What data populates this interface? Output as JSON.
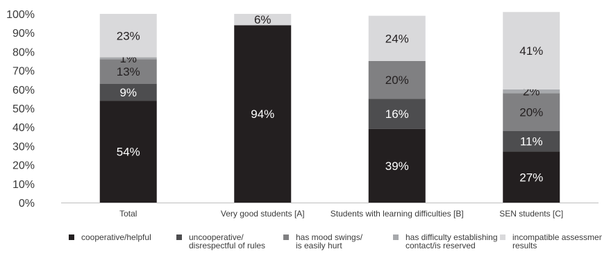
{
  "chart_data": {
    "type": "bar",
    "stacked": true,
    "title": "",
    "xlabel": "",
    "ylabel": "",
    "ylim": [
      0,
      100
    ],
    "y_ticks": [
      "0%",
      "10%",
      "20%",
      "30%",
      "40%",
      "50%",
      "60%",
      "70%",
      "80%",
      "90%",
      "100%"
    ],
    "grid": false,
    "legend_position": "bottom",
    "categories": [
      "Total",
      "Very good students [A]",
      "Students with learning difficulties [B]",
      "SEN students [C]"
    ],
    "series": [
      {
        "name": "cooperative/helpful",
        "color": "#231f20",
        "label_color": "#ffffff",
        "values": [
          54,
          94,
          39,
          27
        ],
        "labels": [
          "54%",
          "94%",
          "39%",
          "27%"
        ]
      },
      {
        "name": "uncooperative/ disrespectful of rules",
        "legend_lines": [
          "uncooperative/",
          "disrespectful of rules"
        ],
        "color": "#4d4d4f",
        "label_color": "#ffffff",
        "values": [
          9,
          0,
          16,
          11
        ],
        "labels": [
          "9%",
          "",
          "16%",
          "11%"
        ]
      },
      {
        "name": "has mood swings/ is easily hurt",
        "legend_lines": [
          "has mood swings/",
          "is easily hurt"
        ],
        "color": "#808082",
        "label_color": "#231f20",
        "values": [
          13,
          0,
          20,
          20
        ],
        "labels": [
          "13%",
          "",
          "20%",
          "20%"
        ]
      },
      {
        "name": "has difficulty establishing contact/is reserved",
        "legend_lines": [
          "has difficulty establishing",
          "contact/is reserved"
        ],
        "color": "#a7a9ac",
        "label_color": "#231f20",
        "values": [
          1,
          0,
          0,
          2
        ],
        "labels": [
          "1%",
          "",
          "",
          "2%"
        ]
      },
      {
        "name": "incompatible assessment results",
        "legend_lines": [
          "incompatible assessment",
          "results"
        ],
        "color": "#d9d9db",
        "label_color": "#231f20",
        "values": [
          23,
          6,
          24,
          41
        ],
        "labels": [
          "23%",
          "6%",
          "24%",
          "41%"
        ]
      }
    ]
  }
}
